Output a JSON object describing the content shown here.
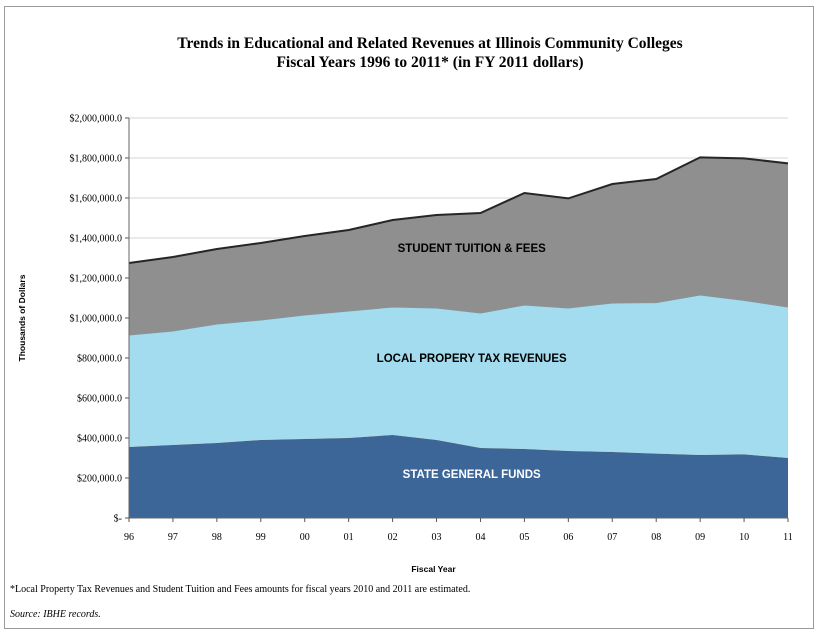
{
  "colors": {
    "state": "#3d6698",
    "local": "#a3dcee",
    "tuition": "#8f8f8f",
    "grid": "#d6d6d6",
    "edge": "#262626",
    "state_text": "#ffffff",
    "other_text": "#000000"
  },
  "chart_data": {
    "type": "area",
    "stacked": true,
    "title": "Trends in Educational and Related Revenues at Illinois Community Colleges",
    "subtitle": "Fiscal Years 1996 to  2011* (in FY 2011 dollars)",
    "xlabel": "Fiscal Year",
    "ylabel": "Thousands of Dollars",
    "ylim": [
      0,
      2000000
    ],
    "y_ticks": [
      0,
      200000,
      400000,
      600000,
      800000,
      1000000,
      1200000,
      1400000,
      1600000,
      1800000,
      2000000
    ],
    "y_tick_labels": [
      "$-",
      "$200,000.0",
      "$400,000.0",
      "$600,000.0",
      "$800,000.0",
      "$1,000,000.0",
      "$1,200,000.0",
      "$1,400,000.0",
      "$1,600,000.0",
      "$1,800,000.0",
      "$2,000,000.0"
    ],
    "grid": true,
    "x": [
      "96",
      "97",
      "98",
      "99",
      "00",
      "01",
      "02",
      "03",
      "04",
      "05",
      "06",
      "07",
      "08",
      "09",
      "10",
      "11"
    ],
    "series": [
      {
        "name": "STATE GENERAL FUNDS",
        "color_key": "state",
        "values": [
          355000,
          365000,
          375000,
          390000,
          395000,
          400000,
          415000,
          390000,
          350000,
          345000,
          335000,
          330000,
          322000,
          315000,
          318000,
          300000
        ]
      },
      {
        "name": "LOCAL PROPERY TAX REVENUES",
        "color_key": "local",
        "values": [
          560000,
          570000,
          595000,
          600000,
          620000,
          635000,
          640000,
          660000,
          675000,
          720000,
          715000,
          745000,
          755000,
          800000,
          770000,
          755000
        ]
      },
      {
        "name": "STUDENT TUITION & FEES",
        "color_key": "tuition",
        "values": [
          360000,
          370000,
          375000,
          385000,
          395000,
          405000,
          435000,
          465000,
          500000,
          560000,
          548000,
          595000,
          618000,
          688000,
          710000,
          718000
        ]
      }
    ],
    "series_label_positions": [
      {
        "x_index": 7.8,
        "y_value": 220000
      },
      {
        "x_index": 7.8,
        "y_value": 800000
      },
      {
        "x_index": 7.8,
        "y_value": 1350000
      }
    ]
  },
  "footnote": "*Local Property Tax Revenues and Student Tuition and Fees amounts for fiscal years 2010 and 2011 are estimated.",
  "source": "Source: IBHE records."
}
